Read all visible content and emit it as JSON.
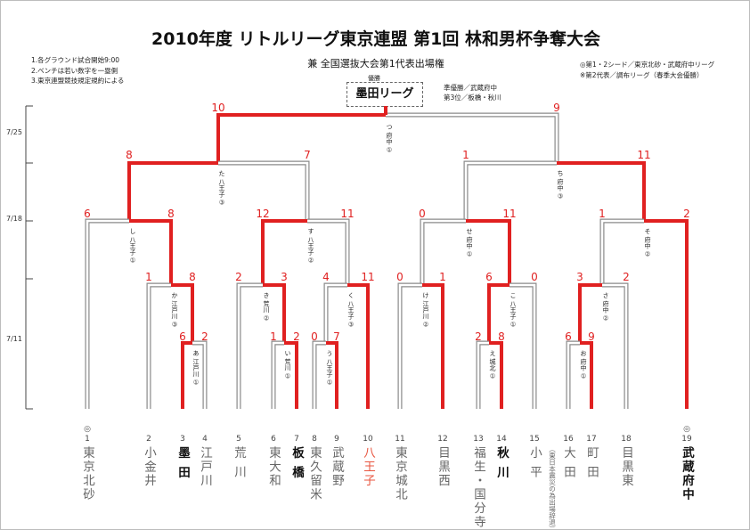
{
  "header": {
    "title": "2010年度 リトルリーグ東京連盟 第1回 林和男杯争奪大会",
    "subtitle": "兼 全国選抜大会第1代表出場権"
  },
  "notes_left": [
    "1.各グラウンド試合開始9:00",
    "2.ベンチは若い数字を一塁側",
    "3.東京連盟競技規定規約による"
  ],
  "notes_right": [
    "◎第1・2シード／東京北砂・武蔵府中リーグ",
    "※第2代表／調布リーグ（春季大会優勝）"
  ],
  "champion": {
    "label": "優勝",
    "name": "墨田リーグ"
  },
  "runner_up": [
    "準優勝／武蔵府中",
    "第3位／板橋・秋川"
  ],
  "dates": [
    "7/25",
    "7/18",
    "7/11"
  ],
  "seed_mark": "◎",
  "teams": [
    {
      "num": "1",
      "name": "東京北砂",
      "seed": true
    },
    {
      "num": "2",
      "name": "小金井"
    },
    {
      "num": "3",
      "name": "墨 田",
      "win": true
    },
    {
      "num": "4",
      "name": "江戸川"
    },
    {
      "num": "5",
      "name": "荒 川"
    },
    {
      "num": "6",
      "name": "東大和"
    },
    {
      "num": "7",
      "name": "板 橋",
      "win": true
    },
    {
      "num": "8",
      "name": "東久留米"
    },
    {
      "num": "9",
      "name": "武蔵野"
    },
    {
      "num": "10",
      "name": "八王子",
      "red": true
    },
    {
      "num": "11",
      "name": "東京城北"
    },
    {
      "num": "12",
      "name": "目黒西"
    },
    {
      "num": "13",
      "name": "福生・国分寺"
    },
    {
      "num": "14",
      "name": "秋 川",
      "win": true
    },
    {
      "num": "15",
      "name": "小 平"
    },
    {
      "num": "16",
      "name": "大 田"
    },
    {
      "num": "17",
      "name": "町 田"
    },
    {
      "num": "18",
      "name": "目黒東"
    },
    {
      "num": "19",
      "name": "武蔵府中",
      "seed": true,
      "win": true
    }
  ],
  "team15_note": "（東日本震災の為出場辞退）",
  "venues": {
    "tsu": "つ 府中 ①",
    "ta": "た 八王子 ③",
    "chi": "ち 府中 ③",
    "shi": "し 八王子 ①",
    "su": "す 八王子 ②",
    "se": "せ 府中 ①",
    "so": "そ 府中 ②",
    "ka": "か 江戸川 ③",
    "ki": "き 荒川 ②",
    "ku": "く 八王子 ③",
    "ke": "け 江戸川 ②",
    "ko": "こ 八王子 ①",
    "sa": "さ 府中 ②",
    "a": "あ 江戸川 ①",
    "i": "い 荒川 ①",
    "u": "う 八王子 ①",
    "e": "え 城北 ①",
    "o": "お 府中 ①"
  },
  "scores": {
    "final": [
      "10",
      "9"
    ],
    "semis": [
      "8",
      "7",
      "1",
      "11"
    ],
    "qf": [
      "6",
      "8",
      "12",
      "11",
      "0",
      "11",
      "1",
      "2"
    ],
    "r2": [
      "1",
      "8",
      "2",
      "3",
      "4",
      "11",
      "0",
      "1",
      "6",
      "0",
      "3",
      "2"
    ],
    "r1": [
      "6",
      "2",
      "1",
      "2",
      "0",
      "7",
      "2",
      "8",
      "6",
      "9"
    ]
  },
  "colors": {
    "win": "#e02020",
    "lose": "#8a8a8a"
  }
}
